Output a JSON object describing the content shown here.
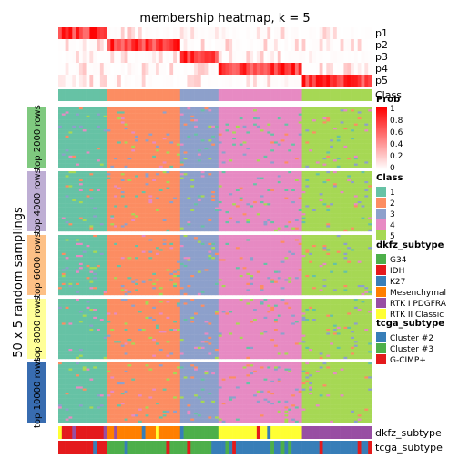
{
  "chart_data": {
    "type": "heatmap",
    "title": "membership heatmap, k = 5",
    "ylabel": "50 x 5 random samplings",
    "membership_rows": [
      "p1",
      "p2",
      "p3",
      "p4",
      "p5"
    ],
    "class_row_label": "Class",
    "sample_groups": [
      {
        "name": "1",
        "n": 14
      },
      {
        "name": "2",
        "n": 21
      },
      {
        "name": "3",
        "n": 11
      },
      {
        "name": "4",
        "n": 24
      },
      {
        "name": "5",
        "n": 20
      }
    ],
    "row_blocks": [
      "top 2000 rows",
      "top 4000 rows",
      "top 6000 rows",
      "top 8000 rows",
      "top 10000 rows"
    ],
    "row_block_colors": [
      "#7FC97F",
      "#BEAED4",
      "#FDC086",
      "#FFFF99",
      "#386CB0"
    ],
    "bottom_tracks": [
      "dkfz_subtype",
      "tcga_subtype"
    ],
    "legends": {
      "prob": {
        "title": "Prob",
        "ticks": [
          "1",
          "0.8",
          "0.6",
          "0.4",
          "0.2",
          "0"
        ],
        "low": "#FFFFFF",
        "high": "#FF0000"
      },
      "class": {
        "title": "Class",
        "items": [
          {
            "label": "1",
            "color": "#66C2A5"
          },
          {
            "label": "2",
            "color": "#FC8D62"
          },
          {
            "label": "3",
            "color": "#8DA0CB"
          },
          {
            "label": "4",
            "color": "#E78AC3"
          },
          {
            "label": "5",
            "color": "#A6D854"
          }
        ]
      },
      "dkfz_subtype": {
        "title": "dkfz_subtype",
        "items": [
          {
            "label": "G34",
            "color": "#4DAF4A"
          },
          {
            "label": "IDH",
            "color": "#E41A1C"
          },
          {
            "label": "K27",
            "color": "#377EB8"
          },
          {
            "label": "Mesenchymal",
            "color": "#FF7F00"
          },
          {
            "label": "RTK I PDGFRA",
            "color": "#984EA3"
          },
          {
            "label": "RTK II Classic",
            "color": "#FFFF33"
          }
        ]
      },
      "tcga_subtype": {
        "title": "tcga_subtype",
        "items": [
          {
            "label": "Cluster #2",
            "color": "#377EB8"
          },
          {
            "label": "Cluster #3",
            "color": "#4DAF4A"
          },
          {
            "label": "G-CIMP+",
            "color": "#E41A1C"
          }
        ]
      }
    }
  }
}
